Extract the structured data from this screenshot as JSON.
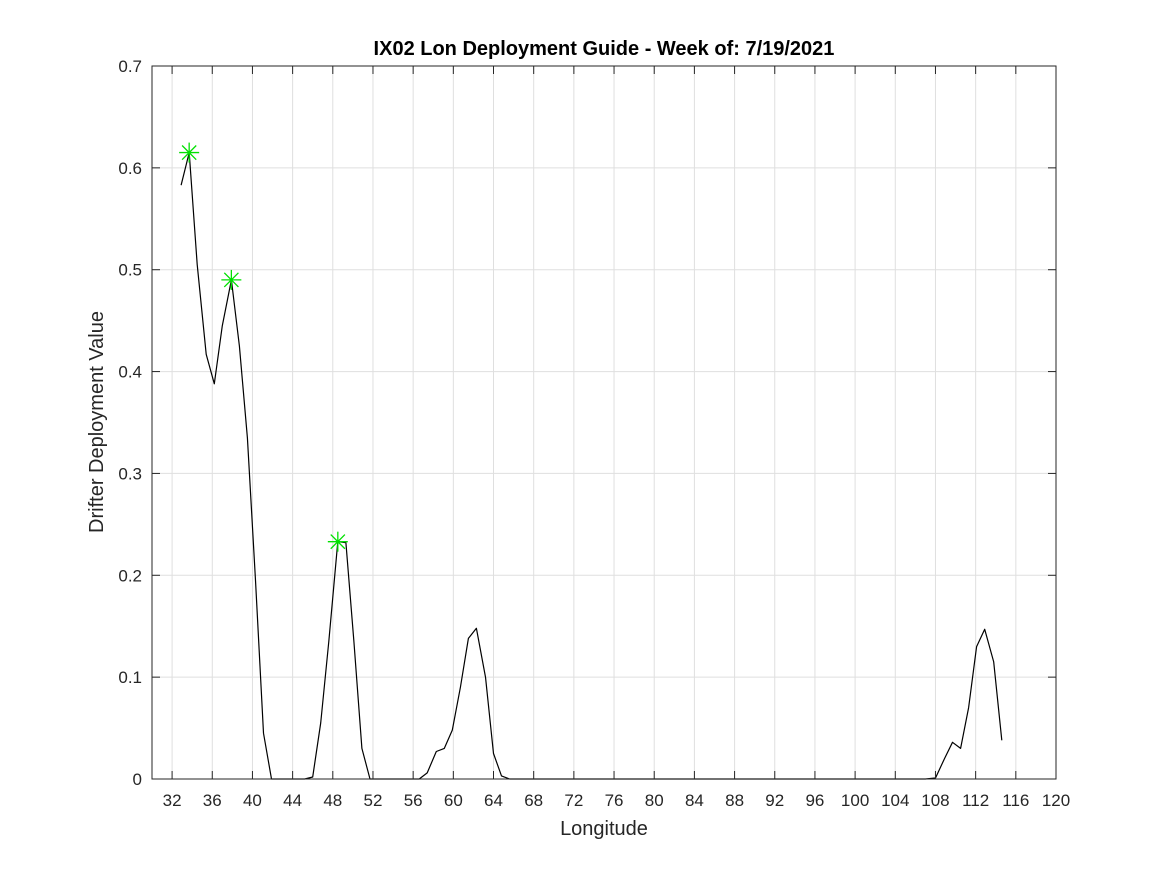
{
  "chart_data": {
    "type": "line",
    "title": "IX02 Lon Deployment Guide - Week of: 7/19/2021",
    "xlabel": "Longitude",
    "ylabel": "Drifter Deployment Value",
    "xlim": [
      30,
      120
    ],
    "ylim": [
      0,
      0.7
    ],
    "xticks": [
      32,
      36,
      40,
      44,
      48,
      52,
      56,
      60,
      64,
      68,
      72,
      76,
      80,
      84,
      88,
      92,
      96,
      100,
      104,
      108,
      112,
      116,
      120
    ],
    "yticks": [
      0,
      0.1,
      0.2,
      0.3,
      0.4,
      0.5,
      0.6,
      0.7
    ],
    "ytick_labels": [
      "0",
      "0.1",
      "0.2",
      "0.3",
      "0.4",
      "0.5",
      "0.6",
      "0.7"
    ],
    "grid": true,
    "line_color": "#000000",
    "marker_color": "#00e000",
    "series": [
      {
        "x": [
          32.9,
          33.7,
          34.5,
          35.4,
          36.2,
          37.0,
          37.9,
          38.7,
          39.5,
          40.3,
          41.1,
          41.9,
          42.7,
          43.6,
          44.4,
          45.2,
          46.0,
          46.8,
          47.6,
          48.5,
          49.3,
          50.1,
          50.9,
          51.7,
          52.5,
          53.4,
          54.2,
          55.0,
          55.8,
          56.6,
          57.4,
          58.3,
          59.1,
          59.9,
          60.7,
          61.5,
          62.3,
          63.2,
          64.0,
          64.8,
          65.6,
          66.4,
          67.2,
          68.1,
          70,
          80,
          90,
          100,
          105,
          107,
          108.0,
          108.9,
          109.7,
          110.5,
          111.3,
          112.1,
          112.9,
          113.8,
          114.6
        ],
        "y": [
          0.583,
          0.615,
          0.505,
          0.417,
          0.388,
          0.445,
          0.49,
          0.425,
          0.335,
          0.195,
          0.045,
          0.0,
          0.0,
          0.0,
          0.0,
          0.0,
          0.002,
          0.055,
          0.135,
          0.233,
          0.232,
          0.135,
          0.03,
          0.0,
          0.0,
          0.0,
          0.0,
          0.0,
          0.0,
          0.0,
          0.006,
          0.027,
          0.03,
          0.048,
          0.09,
          0.138,
          0.148,
          0.1,
          0.025,
          0.003,
          0.0,
          0.0,
          0.0,
          0.0,
          0.0,
          0.0,
          0.0,
          0.0,
          0.0,
          0.0,
          0.001,
          0.02,
          0.036,
          0.03,
          0.07,
          0.13,
          0.147,
          0.115,
          0.038
        ]
      }
    ],
    "markers": [
      {
        "x": 33.7,
        "y": 0.615
      },
      {
        "x": 37.9,
        "y": 0.49
      },
      {
        "x": 48.5,
        "y": 0.233
      }
    ]
  }
}
